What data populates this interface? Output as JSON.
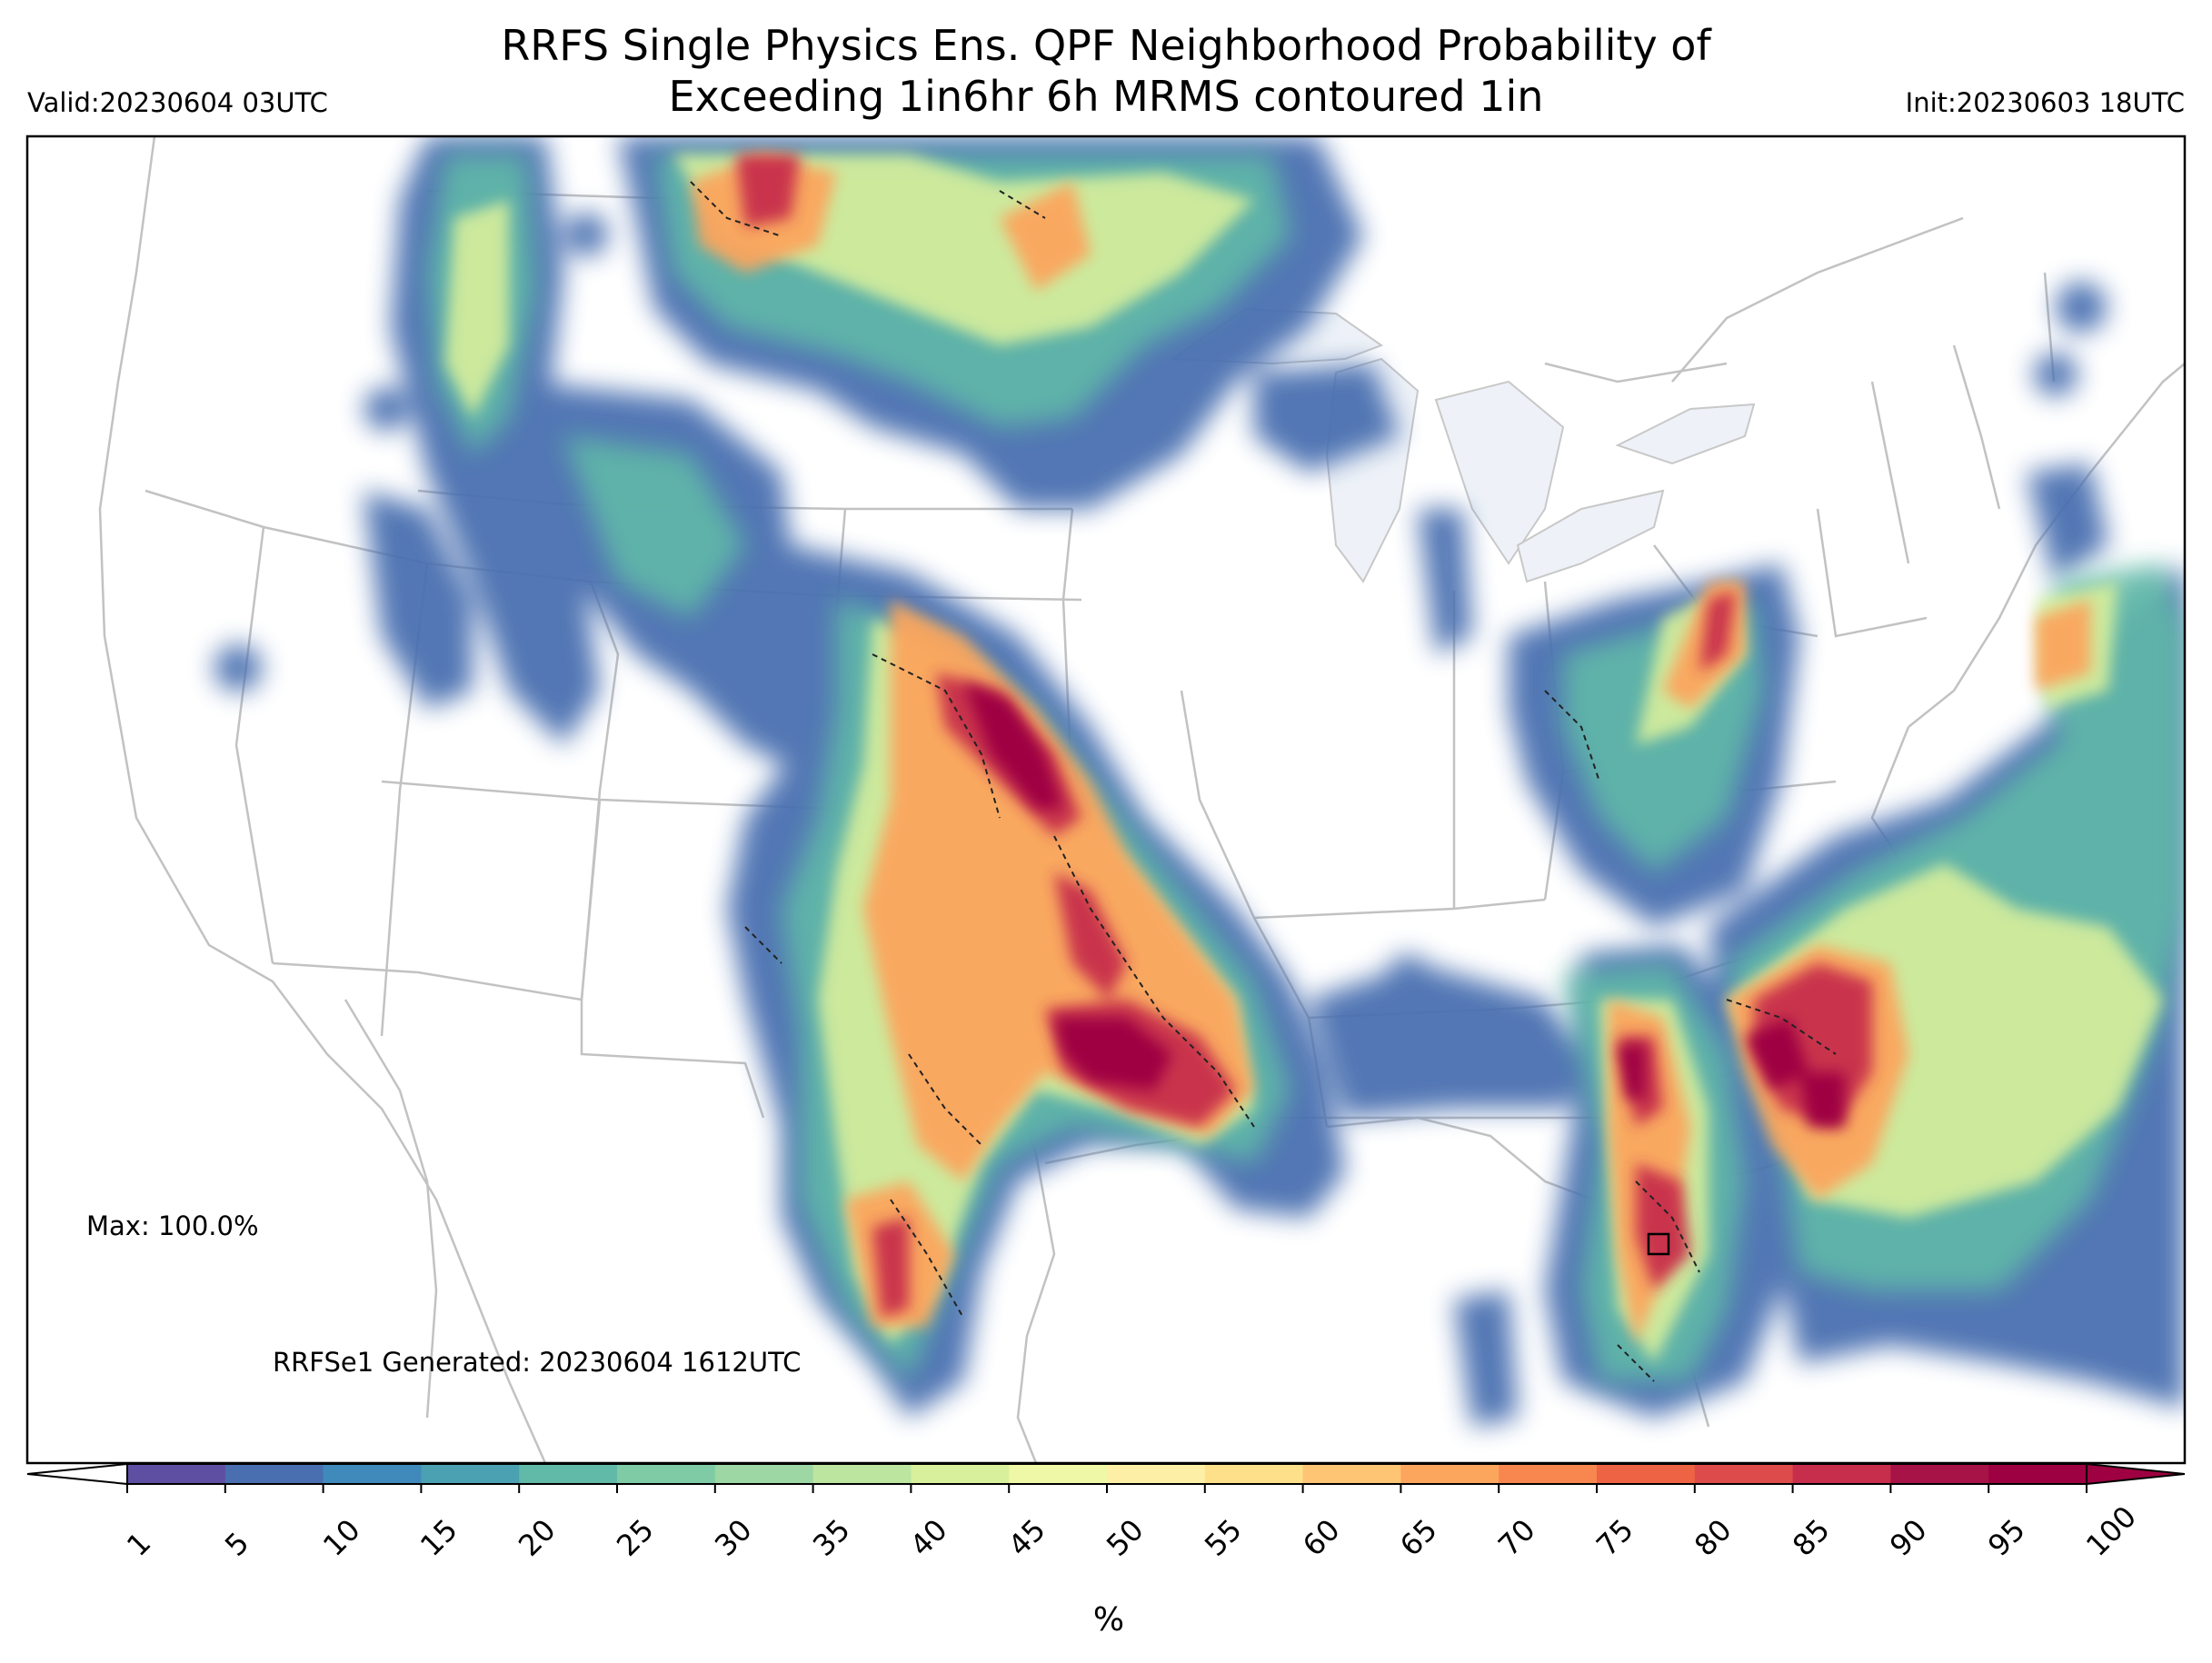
{
  "title_line1": "RRFS Single Physics Ens. QPF Neighborhood Probability of",
  "title_line2": "Exceeding 1in6hr 6h MRMS contoured 1in",
  "valid": "Valid:20230604 03UTC",
  "init": "Init:20230603 18UTC",
  "max_label": "Max: 100.0%",
  "generated_label": "RRFSe1 Generated: 20230604 1612UTC",
  "colorbar": {
    "unit": "%",
    "ticks": [
      "1",
      "5",
      "10",
      "15",
      "20",
      "25",
      "30",
      "35",
      "40",
      "45",
      "50",
      "55",
      "60",
      "65",
      "70",
      "75",
      "80",
      "85",
      "90",
      "95",
      "100"
    ],
    "colors": [
      "#5e4fa2",
      "#4a6fb0",
      "#3f8abb",
      "#4ba0b1",
      "#61b9a8",
      "#7ecba5",
      "#9cd7a4",
      "#bce5a0",
      "#d8ef9b",
      "#eef8a6",
      "#fdf0a6",
      "#fee08b",
      "#fdc574",
      "#fca55d",
      "#f8864f",
      "#ed6343",
      "#de4b4b",
      "#c72e4b",
      "#a71346",
      "#9e0142"
    ]
  },
  "legend_key": {
    "probability_levels": [
      "1",
      "5",
      "10",
      "15",
      "20",
      "25",
      "30",
      "35",
      "40",
      "45",
      "50",
      "55",
      "60",
      "65",
      "70",
      "75",
      "80",
      "85",
      "90",
      "95",
      "100"
    ],
    "mrms_contour": "1in"
  },
  "icons": [
    "colorbar-extend-min-arrow",
    "colorbar-extend-max-arrow"
  ]
}
